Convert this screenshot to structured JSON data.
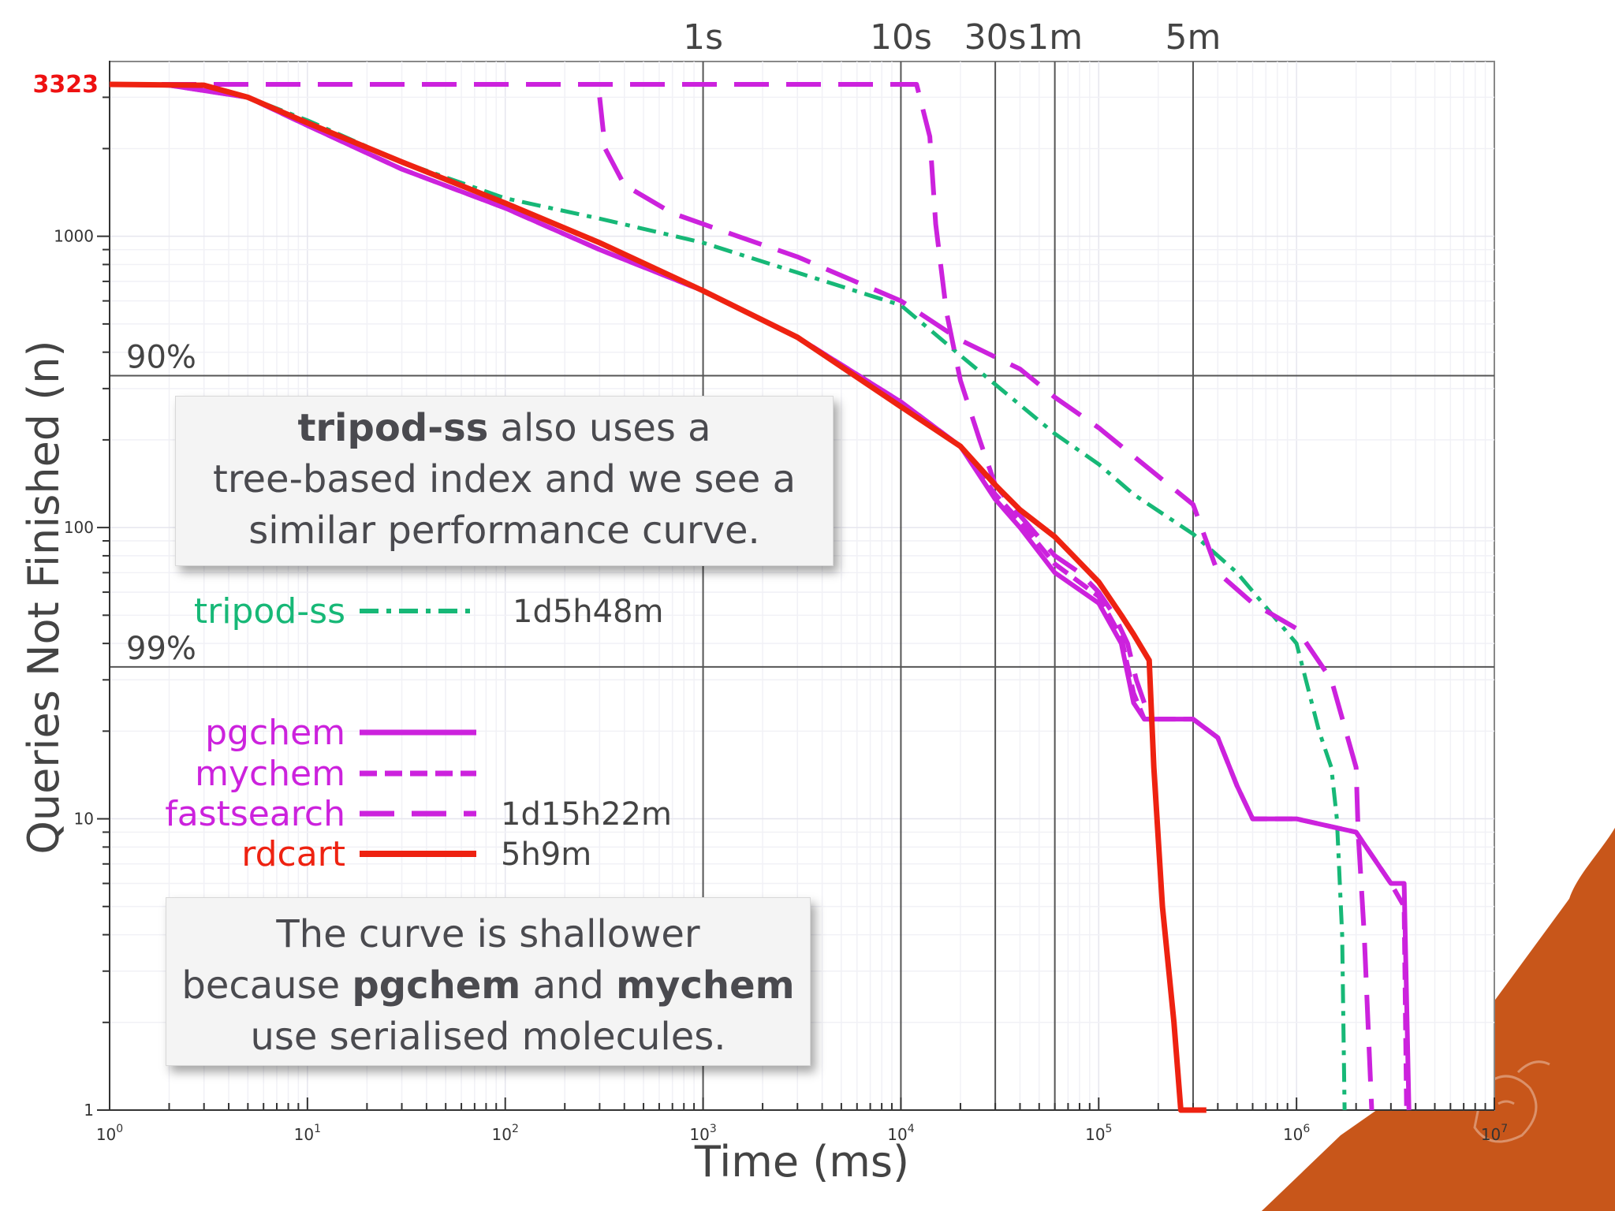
{
  "chart_data": {
    "type": "line",
    "title": "",
    "xlabel": "Time (ms)",
    "ylabel": "Queries Not Finished (n)",
    "x_scale": "log",
    "y_scale": "log",
    "xlim": [
      1,
      10000000
    ],
    "ylim": [
      1,
      3323
    ],
    "x_ticks": [
      {
        "value": 1,
        "base": "10",
        "exp": "0"
      },
      {
        "value": 10,
        "base": "10",
        "exp": "1"
      },
      {
        "value": 100,
        "base": "10",
        "exp": "2"
      },
      {
        "value": 1000,
        "base": "10",
        "exp": "3"
      },
      {
        "value": 10000,
        "base": "10",
        "exp": "4"
      },
      {
        "value": 100000,
        "base": "10",
        "exp": "5"
      },
      {
        "value": 1000000,
        "base": "10",
        "exp": "6"
      },
      {
        "value": 10000000,
        "base": "10",
        "exp": "7"
      }
    ],
    "y_ticks": [
      {
        "value": 1,
        "label": "1"
      },
      {
        "value": 10,
        "label": "10"
      },
      {
        "value": 100,
        "label": "100"
      },
      {
        "value": 1000,
        "label": "1000"
      }
    ],
    "y_max_label": {
      "value": 3323,
      "label": "3323",
      "color": "#ee1111"
    },
    "time_markers": [
      {
        "value": 1000,
        "label": "1s"
      },
      {
        "value": 10000,
        "label": "10s"
      },
      {
        "value": 30000,
        "label": "30s"
      },
      {
        "value": 60000,
        "label": "1m"
      },
      {
        "value": 300000,
        "label": "5m"
      }
    ],
    "percent_markers": [
      {
        "value": 332.3,
        "label": "90%"
      },
      {
        "value": 33.23,
        "label": "99%"
      }
    ],
    "series": [
      {
        "name": "tripod-ss",
        "color": "#17b877",
        "dash": "dashdot",
        "width": 5,
        "total": "1d5h48m",
        "points": [
          [
            1,
            3323
          ],
          [
            3,
            3300
          ],
          [
            5,
            3000
          ],
          [
            10,
            2500
          ],
          [
            30,
            1800
          ],
          [
            100,
            1350
          ],
          [
            300,
            1150
          ],
          [
            1000,
            950
          ],
          [
            3000,
            750
          ],
          [
            10000,
            580
          ],
          [
            20000,
            390
          ],
          [
            30000,
            310
          ],
          [
            60000,
            210
          ],
          [
            100000,
            165
          ],
          [
            150000,
            130
          ],
          [
            300000,
            95
          ],
          [
            500000,
            70
          ],
          [
            1000000,
            40
          ],
          [
            1300000,
            20
          ],
          [
            1500000,
            15
          ],
          [
            1600000,
            10
          ],
          [
            1700000,
            4
          ],
          [
            1750000,
            1
          ]
        ]
      },
      {
        "name": "pgchem",
        "color": "#cc22dd",
        "dash": "solid",
        "width": 6,
        "total": "",
        "points": [
          [
            1,
            3323
          ],
          [
            2,
            3300
          ],
          [
            5,
            3000
          ],
          [
            10,
            2400
          ],
          [
            30,
            1700
          ],
          [
            100,
            1250
          ],
          [
            300,
            900
          ],
          [
            1000,
            650
          ],
          [
            3000,
            450
          ],
          [
            10000,
            270
          ],
          [
            20000,
            190
          ],
          [
            30000,
            125
          ],
          [
            40000,
            100
          ],
          [
            60000,
            70
          ],
          [
            100000,
            55
          ],
          [
            130000,
            40
          ],
          [
            150000,
            25
          ],
          [
            170000,
            22
          ],
          [
            300000,
            22
          ],
          [
            400000,
            19
          ],
          [
            500000,
            13
          ],
          [
            600000,
            10
          ],
          [
            1000000,
            10
          ],
          [
            2000000,
            9
          ],
          [
            3000000,
            6
          ],
          [
            3500000,
            6
          ],
          [
            3700000,
            1
          ]
        ]
      },
      {
        "name": "mychem",
        "color": "#cc22dd",
        "dash": "dashed",
        "width": 6,
        "total": "",
        "points": [
          [
            1,
            3323
          ],
          [
            2,
            3300
          ],
          [
            5,
            3000
          ],
          [
            10,
            2400
          ],
          [
            30,
            1700
          ],
          [
            100,
            1250
          ],
          [
            300,
            900
          ],
          [
            1000,
            650
          ],
          [
            3000,
            450
          ],
          [
            10000,
            270
          ],
          [
            20000,
            190
          ],
          [
            30000,
            130
          ],
          [
            40000,
            105
          ],
          [
            60000,
            75
          ],
          [
            100000,
            58
          ],
          [
            130000,
            42
          ],
          [
            150000,
            27
          ],
          [
            170000,
            22
          ],
          [
            300000,
            22
          ],
          [
            400000,
            19
          ],
          [
            500000,
            13
          ],
          [
            600000,
            10
          ],
          [
            1000000,
            10
          ],
          [
            2000000,
            9
          ],
          [
            3000000,
            6
          ],
          [
            3500000,
            5
          ],
          [
            3600000,
            1
          ]
        ]
      },
      {
        "name": "fastsearch",
        "color": "#cc22dd",
        "dash": "longdash",
        "width": 6,
        "total": "1d15h22m",
        "points": [
          [
            1,
            3323
          ],
          [
            12000,
            3323
          ],
          [
            14000,
            2200
          ],
          [
            15000,
            1100
          ],
          [
            17000,
            550
          ],
          [
            20000,
            320
          ],
          [
            25000,
            200
          ],
          [
            30000,
            140
          ],
          [
            40000,
            110
          ],
          [
            60000,
            80
          ],
          [
            80000,
            70
          ],
          [
            100000,
            60
          ],
          [
            120000,
            50
          ],
          [
            140000,
            40
          ],
          [
            155000,
            30
          ],
          [
            170000,
            25
          ]
        ],
        "points2": [
          [
            300,
            3000
          ],
          [
            320,
            2000
          ],
          [
            400,
            1500
          ],
          [
            700,
            1200
          ],
          [
            1500,
            1000
          ],
          [
            3000,
            850
          ],
          [
            10000,
            600
          ],
          [
            20000,
            440
          ],
          [
            40000,
            350
          ],
          [
            60000,
            280
          ],
          [
            100000,
            220
          ],
          [
            200000,
            150
          ],
          [
            300000,
            120
          ],
          [
            400000,
            70
          ],
          [
            600000,
            55
          ],
          [
            1000000,
            45
          ],
          [
            1500000,
            30
          ],
          [
            2000000,
            15
          ],
          [
            2050000,
            9
          ],
          [
            2200000,
            4
          ],
          [
            2400000,
            1
          ]
        ]
      },
      {
        "name": "rdcart",
        "color": "#ee2211",
        "dash": "solid",
        "width": 7,
        "total": "5h9m",
        "points": [
          [
            1,
            3323
          ],
          [
            3,
            3300
          ],
          [
            5,
            3000
          ],
          [
            10,
            2450
          ],
          [
            30,
            1800
          ],
          [
            100,
            1300
          ],
          [
            300,
            950
          ],
          [
            1000,
            650
          ],
          [
            3000,
            450
          ],
          [
            10000,
            260
          ],
          [
            20000,
            190
          ],
          [
            30000,
            140
          ],
          [
            40000,
            115
          ],
          [
            60000,
            93
          ],
          [
            100000,
            65
          ],
          [
            130000,
            50
          ],
          [
            150000,
            43
          ],
          [
            180000,
            35
          ],
          [
            190000,
            15
          ],
          [
            210000,
            5
          ],
          [
            240000,
            2
          ],
          [
            260000,
            1
          ],
          [
            350000,
            1
          ]
        ]
      }
    ],
    "legend": [
      {
        "series": "tripod-ss",
        "total": "1d5h48m"
      },
      {
        "series": "pgchem",
        "total": ""
      },
      {
        "series": "mychem",
        "total": ""
      },
      {
        "series": "fastsearch",
        "total": "1d15h22m"
      },
      {
        "series": "rdcart",
        "total": "5h9m"
      }
    ]
  },
  "callouts": {
    "first": {
      "bold": "tripod-ss",
      "text1": " also uses a",
      "text2": "tree-based index and we see a",
      "text3": "similar performance curve."
    },
    "second": {
      "line1": "The curve is shallower",
      "pre": "because ",
      "bold1": "pgchem",
      "mid": " and ",
      "bold2": "mychem",
      "line3": "use serialised molecules."
    }
  }
}
